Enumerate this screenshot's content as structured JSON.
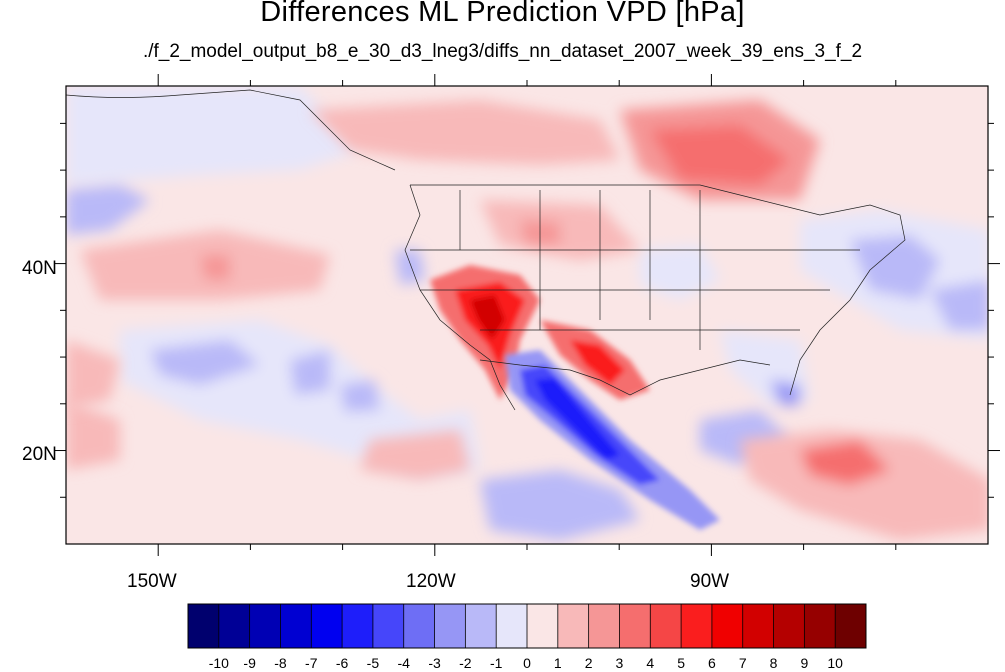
{
  "title": "Differences ML Prediction VPD [hPa]",
  "subtitle": "./f_2_model_output_b8_e_30_d3_lneg3/diffs_nn_dataset_2007_week_39_ens_3_f_2",
  "map": {
    "lon_range": [
      -160,
      -60
    ],
    "lat_range": [
      10,
      59
    ],
    "lat_ticks": [
      {
        "value": 40,
        "label": "40N"
      },
      {
        "value": 20,
        "label": "20N"
      }
    ],
    "lon_ticks": [
      {
        "value": -150,
        "label": "150W"
      },
      {
        "value": -120,
        "label": "120W"
      },
      {
        "value": -90,
        "label": "90W"
      }
    ],
    "minor_lat_ticks": [
      15,
      25,
      30,
      35,
      45,
      50,
      55
    ],
    "minor_lon_ticks": [
      -140,
      -130,
      -110,
      -100,
      -80,
      -70
    ]
  },
  "colorbar": {
    "labels": [
      "-10",
      "-9",
      "-8",
      "-7",
      "-6",
      "-5",
      "-4",
      "-3",
      "-2",
      "-1",
      "0",
      "1",
      "2",
      "3",
      "4",
      "5",
      "6",
      "7",
      "8",
      "9",
      "10"
    ],
    "colors": [
      "#00006e",
      "#000096",
      "#0000b4",
      "#0000d2",
      "#0000f0",
      "#1e1efa",
      "#4646fa",
      "#6e6ef5",
      "#9696f5",
      "#b9b9f8",
      "#e6e6fa",
      "#fae6e6",
      "#f8b9b9",
      "#f59696",
      "#f56e6e",
      "#f54646",
      "#fa1e1e",
      "#f00000",
      "#d20000",
      "#b40000",
      "#960000",
      "#6e0000"
    ],
    "background": "#ffffff"
  }
}
